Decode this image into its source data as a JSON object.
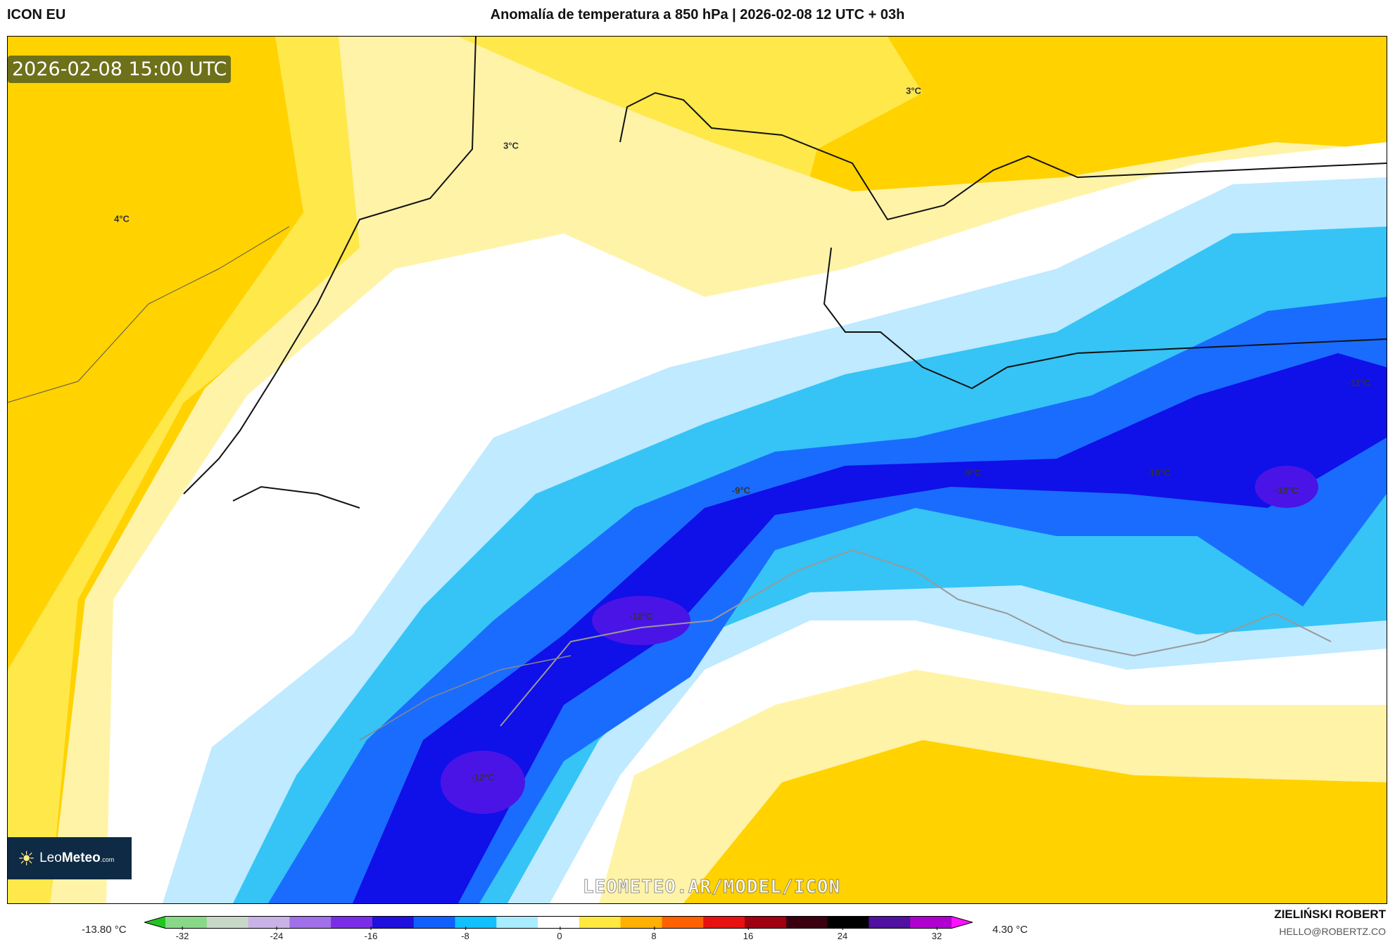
{
  "header": {
    "model": "ICON EU",
    "title": "Anomalía de temperatura a 850 hPa | 2026-02-08 12 UTC + 03h"
  },
  "map": {
    "valid_time": "2026-02-08 15:00 UTC",
    "watermark": "LEOMETEO.AR/MODEL/ICON",
    "logo": {
      "name": "LeoMeteo",
      "part1": "Leo",
      "part2": "Meteo",
      "suffix": ".com"
    },
    "labels": [
      "3°C",
      "3°C",
      "4°C",
      "-11°C",
      "-9°C",
      "-9°C",
      "-10°C",
      "-12°C",
      "-12°C",
      "-12°C"
    ]
  },
  "colorbar": {
    "min_label": "-13.80 °C",
    "max_label": "4.30 °C",
    "ticks": [
      "-32",
      "-24",
      "-16",
      "-8",
      "0",
      "8",
      "16",
      "24",
      "32"
    ],
    "colors": [
      "#22c422",
      "#88d888",
      "#c8d8c8",
      "#c9b3e6",
      "#a070e8",
      "#7a2de8",
      "#2010e0",
      "#1060ff",
      "#10c0ff",
      "#a8ecff",
      "#ffffff",
      "#ffe840",
      "#ffb000",
      "#ff6000",
      "#e81010",
      "#a00010",
      "#3a0010",
      "#000000",
      "#5010a0",
      "#b000d0",
      "#ff10ff"
    ]
  },
  "footer": {
    "author": "ZIELIŃSKI ROBERT",
    "email": "HELLO@ROBERTZ.CO"
  }
}
